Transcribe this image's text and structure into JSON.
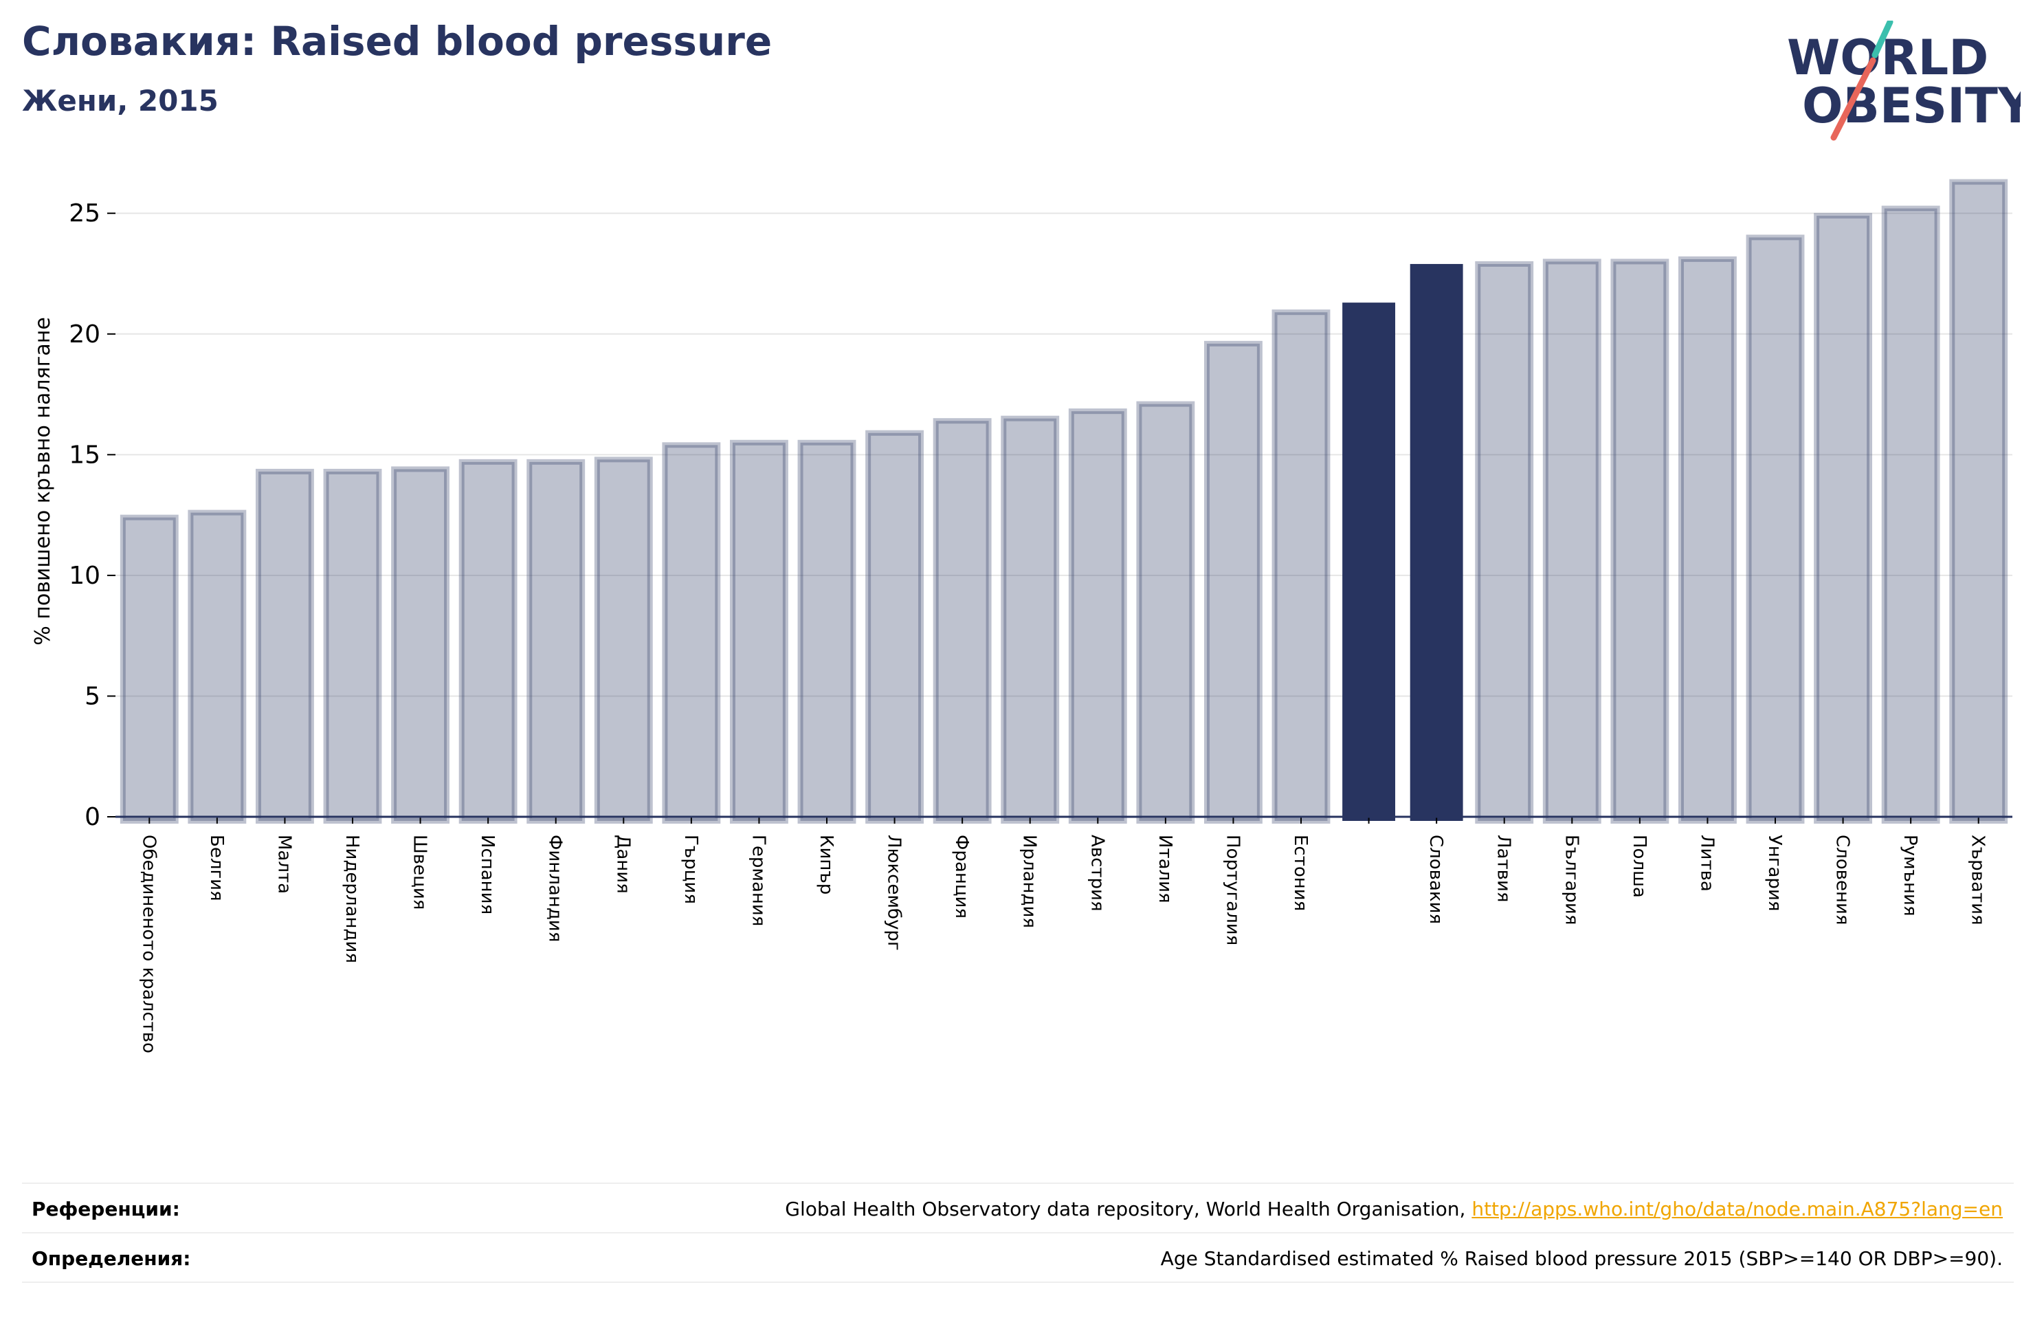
{
  "header": {
    "title": "Словакия: Raised blood pressure",
    "subtitle": "Жени, 2015"
  },
  "logo": {
    "line1": "WORLD",
    "line2": "OBESITY",
    "colors": {
      "text": "#283460",
      "teal": "#3bbfad",
      "coral": "#e8665a"
    }
  },
  "colors": {
    "bar_fill": "#283460",
    "bar_highlight": "#283460",
    "link": "#f0a500",
    "gridline": "#e6e6e6",
    "text": "#283460"
  },
  "chart_data": {
    "type": "bar",
    "title": "Словакия: Raised blood pressure",
    "subtitle": "Жени, 2015",
    "ylabel": "% повишено кръвно налягане",
    "xlabel": "",
    "ylim": [
      0,
      27
    ],
    "yticks": [
      0,
      5,
      10,
      15,
      20,
      25
    ],
    "grid": true,
    "highlight": [
      "",
      "Словакия"
    ],
    "categories": [
      "Обединеното кралство",
      "Белгия",
      "Малта",
      "Нидерландия",
      "Швеция",
      "Испания",
      "Финландия",
      "Дания",
      "Гърция",
      "Германия",
      "Кипър",
      "Люксембург",
      "Франция",
      "Ирландия",
      "Австрия",
      "Италия",
      "Португалия",
      "Естония",
      "",
      "Словакия",
      "Латвия",
      "България",
      "Полша",
      "Литва",
      "Унгария",
      "Словения",
      "Румъния",
      "Хърватия"
    ],
    "values": [
      12.4,
      12.6,
      14.3,
      14.3,
      14.4,
      14.7,
      14.7,
      14.8,
      15.4,
      15.5,
      15.5,
      15.9,
      16.4,
      16.5,
      16.8,
      17.1,
      19.6,
      20.9,
      21.3,
      22.9,
      22.9,
      23.0,
      23.0,
      23.1,
      24.0,
      24.9,
      25.2,
      26.3
    ]
  },
  "footer": {
    "references_label": "Референции:",
    "references_text": "Global Health Observatory data repository, World Health Organisation, ",
    "references_link": "http://apps.who.int/gho/data/node.main.A875?lang=en",
    "definitions_label": "Определения:",
    "definitions_text": "Age Standardised estimated % Raised blood pressure 2015 (SBP>=140 OR DBP>=90)."
  }
}
